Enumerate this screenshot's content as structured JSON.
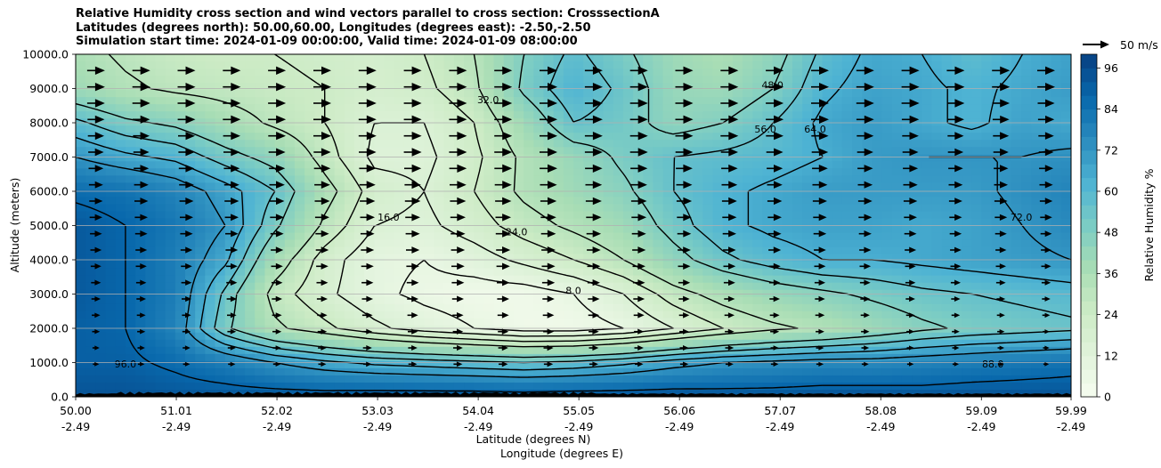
{
  "title": {
    "line1": "Relative Humidity cross section and wind vectors parallel to cross section: CrosssectionA",
    "line2": "Latitudes (degrees north): 50.00,60.00, Longitudes (degrees east): -2.50,-2.50",
    "line3": "Simulation start time: 2024-01-09 00:00:00, Valid time: 2024-01-09 08:00:00"
  },
  "reference_vector": {
    "label": "50 m/s"
  },
  "chart_data": {
    "type": "heatmap",
    "ylabel": "Altitude (meters)",
    "xlabel_line1": "Latitude (degrees N)",
    "xlabel_line2": "Longitude (degrees E)",
    "ylim": [
      0,
      10000
    ],
    "y_ticks": [
      "0.0",
      "1000.0",
      "2000.0",
      "3000.0",
      "4000.0",
      "5000.0",
      "6000.0",
      "7000.0",
      "8000.0",
      "9000.0",
      "10000.0"
    ],
    "y_tick_values": [
      0,
      1000,
      2000,
      3000,
      4000,
      5000,
      6000,
      7000,
      8000,
      9000,
      10000
    ],
    "x_ticks_lat": [
      "50.00",
      "51.01",
      "52.02",
      "53.03",
      "54.04",
      "55.05",
      "56.06",
      "57.07",
      "58.08",
      "59.09",
      "59.99"
    ],
    "x_ticks_lon": [
      "-2.49",
      "-2.49",
      "-2.49",
      "-2.49",
      "-2.49",
      "-2.49",
      "-2.49",
      "-2.49",
      "-2.49",
      "-2.49",
      "-2.49"
    ],
    "x_tick_values": [
      50.0,
      51.01,
      52.02,
      53.03,
      54.04,
      55.05,
      56.06,
      57.07,
      58.08,
      59.09,
      59.99
    ],
    "xlim": [
      50.0,
      59.99
    ],
    "grid": "horizontal",
    "colorbar": {
      "label": "Relative Humidity %",
      "ticks": [
        "0",
        "12",
        "24",
        "36",
        "48",
        "60",
        "72",
        "84",
        "96"
      ],
      "tick_values": [
        0,
        12,
        24,
        36,
        48,
        60,
        72,
        84,
        96
      ],
      "range": [
        0,
        100
      ],
      "colormap": "GnBu",
      "colors": [
        "#f7fcf0",
        "#e0f3db",
        "#ccebc5",
        "#a8ddb5",
        "#7bccc4",
        "#4eb3d3",
        "#2b8cbe",
        "#0868ac",
        "#084081"
      ]
    },
    "humidity_profile_lat": [
      50.0,
      50.5,
      51.0,
      51.5,
      52.0,
      52.5,
      53.0,
      53.5,
      54.0,
      54.5,
      55.0,
      55.5,
      56.0,
      56.5,
      57.0,
      57.5,
      58.0,
      58.5,
      59.0,
      59.5,
      59.99
    ],
    "humidity_profile_levels": [
      0,
      1000,
      2000,
      3000,
      4000,
      5000,
      6000,
      7000,
      8000,
      9000,
      10000
    ],
    "relative_humidity": [
      [
        94,
        94,
        93,
        93,
        93,
        93,
        94,
        94,
        94,
        93,
        94,
        94,
        94,
        93,
        93,
        94,
        94,
        93,
        94,
        94,
        94
      ],
      [
        90,
        90,
        86,
        80,
        72,
        66,
        62,
        60,
        58,
        56,
        58,
        62,
        68,
        72,
        74,
        76,
        76,
        78,
        80,
        82,
        84
      ],
      [
        90,
        88,
        78,
        50,
        34,
        26,
        18,
        12,
        8,
        4,
        4,
        8,
        16,
        24,
        30,
        34,
        40,
        46,
        50,
        52,
        54
      ],
      [
        92,
        88,
        80,
        54,
        28,
        18,
        10,
        6,
        4,
        4,
        8,
        16,
        28,
        36,
        42,
        46,
        50,
        54,
        56,
        58,
        60
      ],
      [
        92,
        88,
        80,
        66,
        38,
        20,
        10,
        8,
        12,
        18,
        24,
        32,
        44,
        54,
        60,
        64,
        64,
        66,
        68,
        70,
        72
      ],
      [
        92,
        88,
        82,
        72,
        50,
        30,
        16,
        14,
        20,
        28,
        34,
        40,
        52,
        62,
        66,
        68,
        68,
        66,
        68,
        72,
        76
      ],
      [
        86,
        84,
        78,
        68,
        56,
        36,
        20,
        16,
        24,
        34,
        40,
        46,
        56,
        62,
        66,
        70,
        70,
        70,
        70,
        74,
        78
      ],
      [
        72,
        66,
        62,
        52,
        44,
        28,
        14,
        14,
        22,
        34,
        42,
        50,
        56,
        58,
        60,
        64,
        70,
        72,
        72,
        72,
        74
      ],
      [
        58,
        50,
        46,
        38,
        30,
        24,
        16,
        16,
        24,
        40,
        56,
        52,
        44,
        48,
        56,
        66,
        70,
        66,
        62,
        68,
        66
      ],
      [
        40,
        34,
        30,
        28,
        26,
        24,
        20,
        22,
        30,
        50,
        62,
        54,
        42,
        40,
        48,
        62,
        68,
        66,
        62,
        66,
        70
      ],
      [
        36,
        30,
        26,
        24,
        24,
        22,
        20,
        24,
        32,
        48,
        58,
        50,
        40,
        36,
        44,
        58,
        66,
        64,
        58,
        64,
        68
      ]
    ],
    "contour_labels": [
      "8.0",
      "16.0",
      "24.0",
      "32.0",
      "48.0",
      "56.0",
      "64.0",
      "72.0",
      "88.0",
      "96.0"
    ]
  }
}
